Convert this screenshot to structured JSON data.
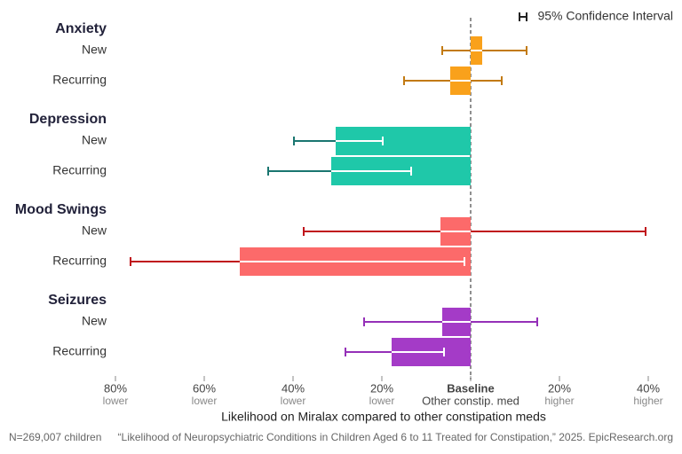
{
  "chart_data": {
    "type": "grouped-horizontal-bar-ci",
    "legend": "95% Confidence Interval",
    "legend_position": "top-right",
    "x_label": "Likelihood on Miralax compared to other constipation meds",
    "xlim": [
      -80,
      40
    ],
    "xticks": [
      {
        "value": -80,
        "label": "80%",
        "sublabel": "lower"
      },
      {
        "value": -60,
        "label": "60%",
        "sublabel": "lower"
      },
      {
        "value": -40,
        "label": "40%",
        "sublabel": "lower"
      },
      {
        "value": -20,
        "label": "20%",
        "sublabel": "lower"
      },
      {
        "value": 0,
        "label": "Baseline",
        "sublabel": "Other constip. med"
      },
      {
        "value": 20,
        "label": "20%",
        "sublabel": "higher"
      },
      {
        "value": 40,
        "label": "40%",
        "sublabel": "higher"
      }
    ],
    "groups": [
      {
        "name": "Anxiety",
        "color": "#f9a11b",
        "ci_color": "#c27a12",
        "categories": [
          "New",
          "Recurring"
        ],
        "values": [
          2.6,
          -4.6
        ],
        "ci_low": [
          -6.4,
          -15
        ],
        "ci_high": [
          12.6,
          7
        ]
      },
      {
        "name": "Depression",
        "color": "#1fc8a9",
        "ci_color": "#1a7670",
        "categories": [
          "New",
          "Recurring"
        ],
        "values": [
          -30.4,
          -31.4
        ],
        "ci_low": [
          -39.8,
          -45.6
        ],
        "ci_high": [
          -19.8,
          -13.4
        ]
      },
      {
        "name": "Mood Swings",
        "color": "#fc6a6a",
        "ci_color": "#c0141c",
        "categories": [
          "New",
          "Recurring"
        ],
        "values": [
          -6.8,
          -52
        ],
        "ci_low": [
          -37.6,
          -76.6
        ],
        "ci_high": [
          39.4,
          -1.4
        ]
      },
      {
        "name": "Seizures",
        "color": "#a43bc7",
        "ci_color": "#9530b8",
        "categories": [
          "New",
          "Recurring"
        ],
        "values": [
          -6.4,
          -17.8
        ],
        "ci_low": [
          -24,
          -28.2
        ],
        "ci_high": [
          15,
          -6
        ]
      }
    ],
    "footnote_left": "N=269,007 children",
    "footnote_right": "“Likelihood of Neuropsychiatric Conditions in Children Aged 6 to 11 Treated for Constipation,” 2025. EpicResearch.org"
  }
}
